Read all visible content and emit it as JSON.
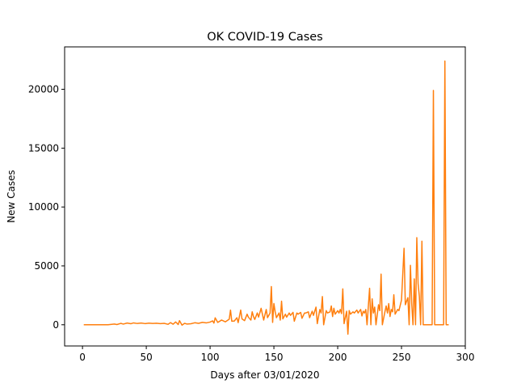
{
  "chart_data": {
    "type": "line",
    "title": "OK COVID-19 Cases",
    "xlabel": "Days after 03/01/2020",
    "ylabel": "New Cases",
    "xlim": [
      -14,
      300
    ],
    "ylim": [
      -1800,
      23600
    ],
    "xticks": [
      0,
      50,
      100,
      150,
      200,
      250,
      300
    ],
    "yticks": [
      0,
      5000,
      10000,
      15000,
      20000
    ],
    "grid": false,
    "legend": "none",
    "series": [
      {
        "color": "#ff7f0e",
        "points": [
          [
            1,
            0
          ],
          [
            10,
            0
          ],
          [
            20,
            5
          ],
          [
            25,
            60
          ],
          [
            27,
            20
          ],
          [
            30,
            120
          ],
          [
            32,
            60
          ],
          [
            35,
            150
          ],
          [
            38,
            90
          ],
          [
            40,
            160
          ],
          [
            43,
            110
          ],
          [
            46,
            150
          ],
          [
            49,
            100
          ],
          [
            52,
            140
          ],
          [
            55,
            110
          ],
          [
            58,
            130
          ],
          [
            61,
            100
          ],
          [
            64,
            120
          ],
          [
            67,
            40
          ],
          [
            69,
            180
          ],
          [
            71,
            50
          ],
          [
            73,
            240
          ],
          [
            75,
            20
          ],
          [
            76,
            350
          ],
          [
            78,
            -30
          ],
          [
            80,
            120
          ],
          [
            82,
            60
          ],
          [
            85,
            90
          ],
          [
            88,
            170
          ],
          [
            91,
            120
          ],
          [
            94,
            210
          ],
          [
            97,
            160
          ],
          [
            100,
            230
          ],
          [
            102,
            330
          ],
          [
            103,
            140
          ],
          [
            104,
            590
          ],
          [
            106,
            200
          ],
          [
            109,
            400
          ],
          [
            112,
            250
          ],
          [
            115,
            470
          ],
          [
            116,
            1250
          ],
          [
            117,
            300
          ],
          [
            119,
            320
          ],
          [
            121,
            600
          ],
          [
            122,
            180
          ],
          [
            124,
            1250
          ],
          [
            125,
            500
          ],
          [
            127,
            350
          ],
          [
            129,
            900
          ],
          [
            130,
            650
          ],
          [
            132,
            400
          ],
          [
            133,
            1100
          ],
          [
            134,
            700
          ],
          [
            135,
            450
          ],
          [
            137,
            1000
          ],
          [
            138,
            650
          ],
          [
            140,
            1400
          ],
          [
            141,
            900
          ],
          [
            142,
            400
          ],
          [
            144,
            1300
          ],
          [
            145,
            600
          ],
          [
            147,
            1000
          ],
          [
            148,
            3250
          ],
          [
            149,
            200
          ],
          [
            150,
            1800
          ],
          [
            151,
            1100
          ],
          [
            152,
            600
          ],
          [
            154,
            1000
          ],
          [
            155,
            400
          ],
          [
            156,
            2000
          ],
          [
            157,
            500
          ],
          [
            159,
            900
          ],
          [
            160,
            650
          ],
          [
            162,
            1000
          ],
          [
            163,
            800
          ],
          [
            165,
            1050
          ],
          [
            166,
            300
          ],
          [
            168,
            1000
          ],
          [
            169,
            900
          ],
          [
            171,
            1050
          ],
          [
            172,
            550
          ],
          [
            174,
            1000
          ],
          [
            175,
            1000
          ],
          [
            177,
            1100
          ],
          [
            178,
            600
          ],
          [
            180,
            1150
          ],
          [
            181,
            800
          ],
          [
            183,
            1500
          ],
          [
            184,
            100
          ],
          [
            186,
            1300
          ],
          [
            187,
            1000
          ],
          [
            188,
            2400
          ],
          [
            189,
            0
          ],
          [
            191,
            1200
          ],
          [
            192,
            1000
          ],
          [
            194,
            1100
          ],
          [
            195,
            1600
          ],
          [
            196,
            700
          ],
          [
            197,
            1400
          ],
          [
            198,
            900
          ],
          [
            200,
            1200
          ],
          [
            201,
            1000
          ],
          [
            202,
            1300
          ],
          [
            203,
            950
          ],
          [
            204,
            3050
          ],
          [
            205,
            100
          ],
          [
            207,
            1150
          ],
          [
            208,
            -800
          ],
          [
            209,
            1200
          ],
          [
            210,
            900
          ],
          [
            212,
            1100
          ],
          [
            213,
            1000
          ],
          [
            215,
            1250
          ],
          [
            216,
            1000
          ],
          [
            218,
            1300
          ],
          [
            219,
            750
          ],
          [
            220,
            1150
          ],
          [
            221,
            1000
          ],
          [
            222,
            1300
          ],
          [
            223,
            0
          ],
          [
            225,
            3100
          ],
          [
            226,
            0
          ],
          [
            227,
            2200
          ],
          [
            228,
            1000
          ],
          [
            229,
            1500
          ],
          [
            230,
            0
          ],
          [
            232,
            1700
          ],
          [
            233,
            1200
          ],
          [
            234,
            4300
          ],
          [
            235,
            0
          ],
          [
            237,
            1100
          ],
          [
            238,
            1600
          ],
          [
            239,
            1000
          ],
          [
            240,
            1800
          ],
          [
            241,
            700
          ],
          [
            242,
            1300
          ],
          [
            243,
            1100
          ],
          [
            244,
            2550
          ],
          [
            245,
            900
          ],
          [
            247,
            1300
          ],
          [
            248,
            1200
          ],
          [
            250,
            2100
          ],
          [
            252,
            6500
          ],
          [
            253,
            1700
          ],
          [
            255,
            2300
          ],
          [
            256,
            0
          ],
          [
            257,
            5050
          ],
          [
            258,
            1800
          ],
          [
            259,
            0
          ],
          [
            260,
            3900
          ],
          [
            261,
            0
          ],
          [
            262,
            7400
          ],
          [
            263,
            3500
          ],
          [
            264,
            2400
          ],
          [
            265,
            0
          ],
          [
            266,
            7100
          ],
          [
            267,
            0
          ],
          [
            274,
            0
          ],
          [
            275,
            19900
          ],
          [
            276,
            0
          ],
          [
            283,
            0
          ],
          [
            284,
            22400
          ],
          [
            285,
            0
          ],
          [
            287,
            0
          ]
        ]
      }
    ]
  }
}
